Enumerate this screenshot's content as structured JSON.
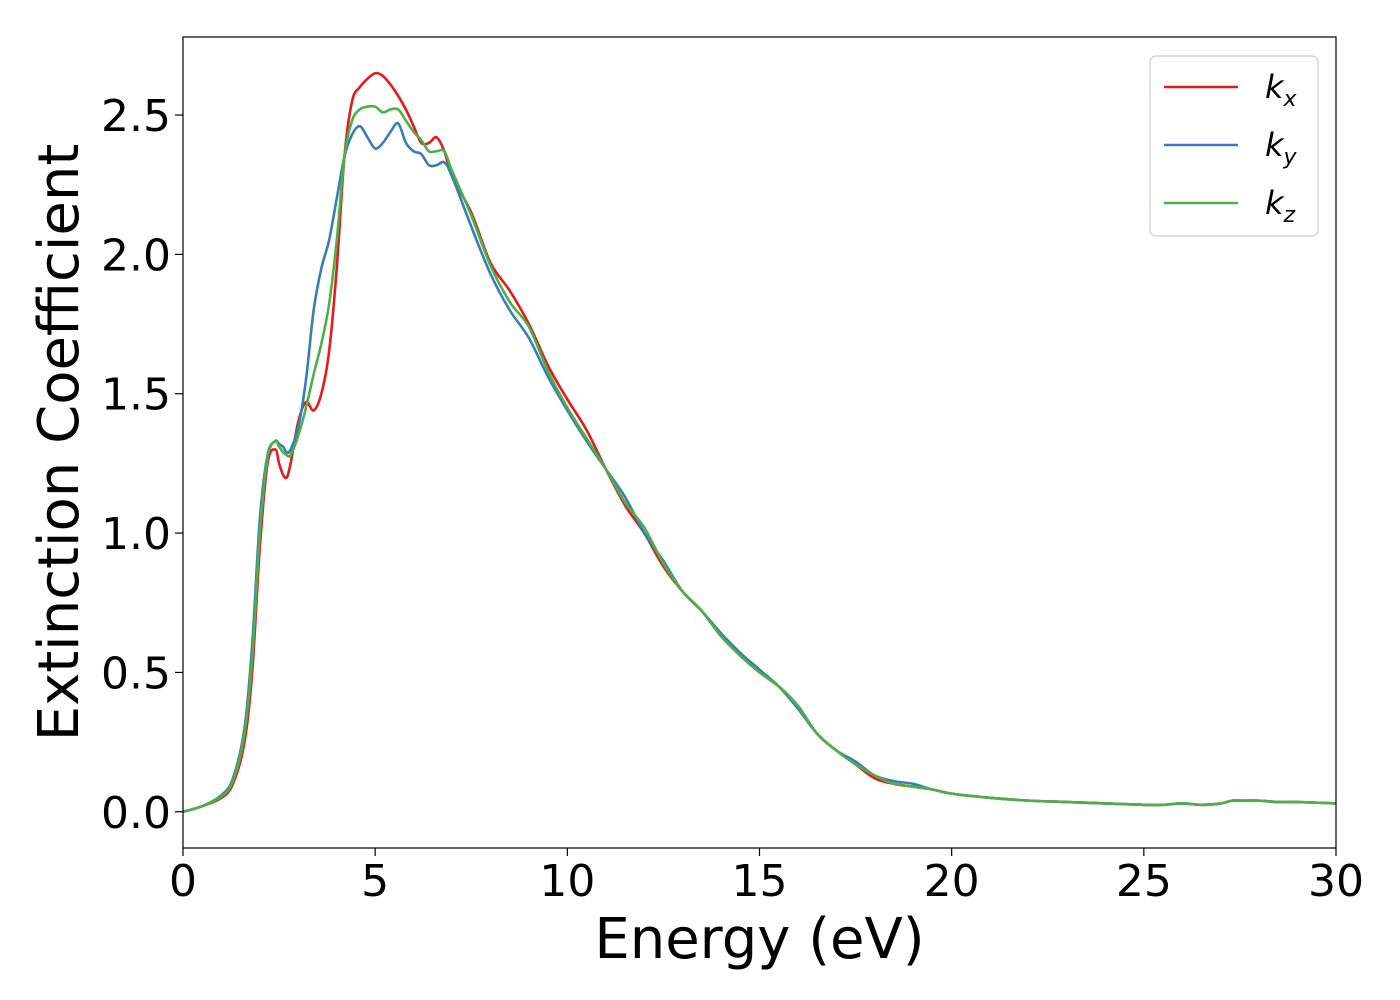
{
  "chart_data": {
    "type": "line",
    "xlabel": "Energy (eV)",
    "ylabel": "Extinction Coefficient",
    "xlim": [
      0,
      30
    ],
    "ylim": [
      -0.13,
      2.78
    ],
    "xticks": [
      0,
      5,
      10,
      15,
      20,
      25,
      30
    ],
    "xtick_labels": [
      "0",
      "5",
      "10",
      "15",
      "20",
      "25",
      "30"
    ],
    "yticks": [
      0.0,
      0.5,
      1.0,
      1.5,
      2.0,
      2.5
    ],
    "ytick_labels": [
      "0.0",
      "0.5",
      "1.0",
      "1.5",
      "2.0",
      "2.5"
    ],
    "grid": false,
    "legend_position": "top-right",
    "series": [
      {
        "name": "k_x",
        "label_main": "k",
        "label_sub": "x",
        "color": "#e41a1c",
        "x": [
          0,
          0.5,
          1.0,
          1.3,
          1.6,
          1.8,
          2.0,
          2.2,
          2.4,
          2.5,
          2.6,
          2.7,
          2.8,
          3.0,
          3.2,
          3.4,
          3.6,
          3.8,
          4.0,
          4.2,
          4.4,
          4.6,
          4.8,
          5.0,
          5.2,
          5.5,
          5.8,
          6.0,
          6.2,
          6.4,
          6.6,
          6.8,
          7.0,
          7.5,
          8.0,
          8.5,
          9.0,
          9.5,
          10.0,
          10.5,
          11.0,
          11.5,
          12.0,
          12.5,
          13.0,
          13.5,
          14.0,
          14.5,
          15.0,
          15.5,
          16.0,
          16.5,
          17.0,
          17.5,
          18.0,
          18.5,
          19.0,
          19.5,
          20.0,
          21.0,
          22.0,
          23.0,
          24.0,
          25.0,
          25.5,
          26.0,
          26.5,
          27.0,
          27.3,
          27.6,
          28.0,
          28.5,
          29.0,
          30.0
        ],
        "y": [
          0.0,
          0.02,
          0.05,
          0.1,
          0.25,
          0.5,
          0.95,
          1.25,
          1.3,
          1.25,
          1.21,
          1.2,
          1.25,
          1.4,
          1.47,
          1.44,
          1.5,
          1.65,
          1.95,
          2.35,
          2.55,
          2.6,
          2.63,
          2.65,
          2.64,
          2.59,
          2.52,
          2.46,
          2.4,
          2.4,
          2.42,
          2.37,
          2.28,
          2.15,
          1.97,
          1.87,
          1.75,
          1.6,
          1.48,
          1.37,
          1.23,
          1.1,
          1.0,
          0.88,
          0.79,
          0.72,
          0.63,
          0.56,
          0.5,
          0.45,
          0.38,
          0.28,
          0.22,
          0.17,
          0.12,
          0.1,
          0.09,
          0.08,
          0.065,
          0.05,
          0.04,
          0.035,
          0.03,
          0.025,
          0.025,
          0.03,
          0.025,
          0.03,
          0.04,
          0.04,
          0.04,
          0.035,
          0.035,
          0.03
        ]
      },
      {
        "name": "k_y",
        "label_main": "k",
        "label_sub": "y",
        "color": "#377eb8",
        "x": [
          0,
          0.5,
          1.0,
          1.3,
          1.6,
          1.8,
          2.0,
          2.2,
          2.4,
          2.5,
          2.6,
          2.7,
          2.8,
          3.0,
          3.2,
          3.4,
          3.6,
          3.8,
          4.0,
          4.2,
          4.4,
          4.6,
          4.8,
          5.0,
          5.2,
          5.4,
          5.6,
          5.8,
          6.0,
          6.2,
          6.4,
          6.6,
          6.8,
          7.0,
          7.5,
          8.0,
          8.5,
          9.0,
          9.5,
          10.0,
          10.5,
          11.0,
          11.5,
          12.0,
          12.5,
          13.0,
          13.5,
          14.0,
          14.5,
          15.0,
          15.5,
          16.0,
          16.5,
          17.0,
          17.5,
          18.0,
          18.5,
          19.0,
          19.5,
          20.0,
          21.0,
          22.0,
          23.0,
          24.0,
          25.0,
          25.5,
          26.0,
          26.5,
          27.0,
          27.3,
          27.6,
          28.0,
          28.5,
          29.0,
          30.0
        ],
        "y": [
          0.0,
          0.02,
          0.06,
          0.12,
          0.3,
          0.6,
          1.05,
          1.28,
          1.33,
          1.32,
          1.31,
          1.29,
          1.3,
          1.38,
          1.55,
          1.8,
          1.95,
          2.05,
          2.2,
          2.35,
          2.43,
          2.46,
          2.42,
          2.38,
          2.4,
          2.44,
          2.47,
          2.4,
          2.37,
          2.36,
          2.32,
          2.32,
          2.33,
          2.28,
          2.1,
          1.93,
          1.8,
          1.7,
          1.56,
          1.44,
          1.33,
          1.23,
          1.13,
          1.0,
          0.9,
          0.79,
          0.72,
          0.64,
          0.57,
          0.51,
          0.45,
          0.37,
          0.28,
          0.22,
          0.18,
          0.13,
          0.11,
          0.1,
          0.08,
          0.065,
          0.05,
          0.04,
          0.035,
          0.03,
          0.025,
          0.025,
          0.03,
          0.025,
          0.03,
          0.04,
          0.04,
          0.04,
          0.035,
          0.035,
          0.03
        ]
      },
      {
        "name": "k_z",
        "label_main": "k",
        "label_sub": "z",
        "color": "#4daf4a",
        "x": [
          0,
          0.5,
          1.0,
          1.3,
          1.6,
          1.8,
          2.0,
          2.2,
          2.4,
          2.5,
          2.6,
          2.7,
          2.8,
          3.0,
          3.2,
          3.4,
          3.6,
          3.8,
          4.0,
          4.2,
          4.4,
          4.6,
          4.8,
          5.0,
          5.2,
          5.4,
          5.6,
          5.8,
          6.0,
          6.2,
          6.4,
          6.6,
          6.8,
          7.0,
          7.5,
          8.0,
          8.5,
          9.0,
          9.5,
          10.0,
          10.5,
          11.0,
          11.5,
          12.0,
          12.5,
          13.0,
          13.5,
          14.0,
          14.5,
          15.0,
          15.5,
          16.0,
          16.5,
          17.0,
          17.5,
          18.0,
          18.5,
          19.0,
          19.5,
          20.0,
          21.0,
          22.0,
          23.0,
          24.0,
          25.0,
          25.5,
          26.0,
          26.5,
          27.0,
          27.3,
          27.6,
          28.0,
          28.5,
          29.0,
          30.0
        ],
        "y": [
          0.0,
          0.02,
          0.055,
          0.11,
          0.28,
          0.55,
          1.0,
          1.27,
          1.33,
          1.31,
          1.29,
          1.28,
          1.28,
          1.35,
          1.45,
          1.57,
          1.68,
          1.82,
          2.05,
          2.35,
          2.48,
          2.52,
          2.53,
          2.53,
          2.51,
          2.52,
          2.52,
          2.48,
          2.44,
          2.41,
          2.37,
          2.37,
          2.37,
          2.3,
          2.14,
          1.96,
          1.83,
          1.74,
          1.58,
          1.45,
          1.34,
          1.23,
          1.11,
          1.02,
          0.89,
          0.79,
          0.72,
          0.63,
          0.56,
          0.5,
          0.45,
          0.38,
          0.28,
          0.22,
          0.17,
          0.13,
          0.1,
          0.09,
          0.08,
          0.065,
          0.05,
          0.04,
          0.035,
          0.03,
          0.025,
          0.025,
          0.03,
          0.025,
          0.03,
          0.04,
          0.04,
          0.04,
          0.035,
          0.035,
          0.03
        ]
      }
    ]
  }
}
